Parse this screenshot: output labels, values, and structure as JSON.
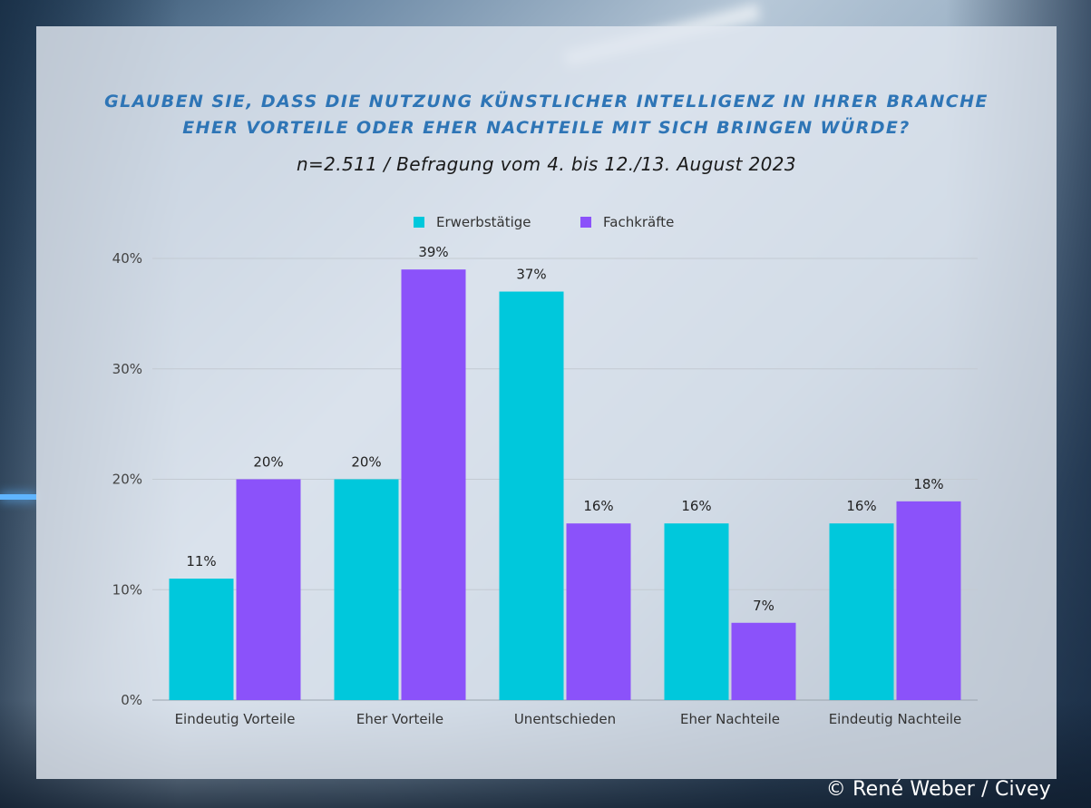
{
  "header": {
    "title_line1": "GLAUBEN SIE, DASS DIE NUTZUNG KÜNSTLICHER INTELLIGENZ IN IHRER BRANCHE",
    "title_line2": "EHER VORTEILE ODER EHER NACHTEILE MIT SICH BRINGEN WÜRDE?",
    "subtitle": "n=2.511 / Befragung vom 4. bis 12./13. August 2023"
  },
  "credit": "© René Weber / Civey",
  "colors": {
    "title": "#2e75b6",
    "erwerbstaetige": "#00c8dc",
    "fachkraefte": "#8b52fa"
  },
  "chart_data": {
    "type": "bar",
    "categories": [
      "Eindeutig Vorteile",
      "Eher Vorteile",
      "Unentschieden",
      "Eher Nachteile",
      "Eindeutig Nachteile"
    ],
    "series": [
      {
        "name": "Erwerbstätige",
        "values": [
          11,
          20,
          37,
          16,
          16
        ],
        "labels": [
          "11%",
          "20%",
          "37%",
          "16%",
          "16%"
        ],
        "color": "#00c8dc"
      },
      {
        "name": "Fachkräfte",
        "values": [
          20,
          39,
          16,
          7,
          18
        ],
        "labels": [
          "20%",
          "39%",
          "16%",
          "7%",
          "18%"
        ],
        "color": "#8b52fa"
      }
    ],
    "yticks": [
      "0%",
      "10%",
      "20%",
      "30%",
      "40%"
    ],
    "ylim": [
      0,
      40
    ],
    "grid": true,
    "legend": "top-center"
  }
}
